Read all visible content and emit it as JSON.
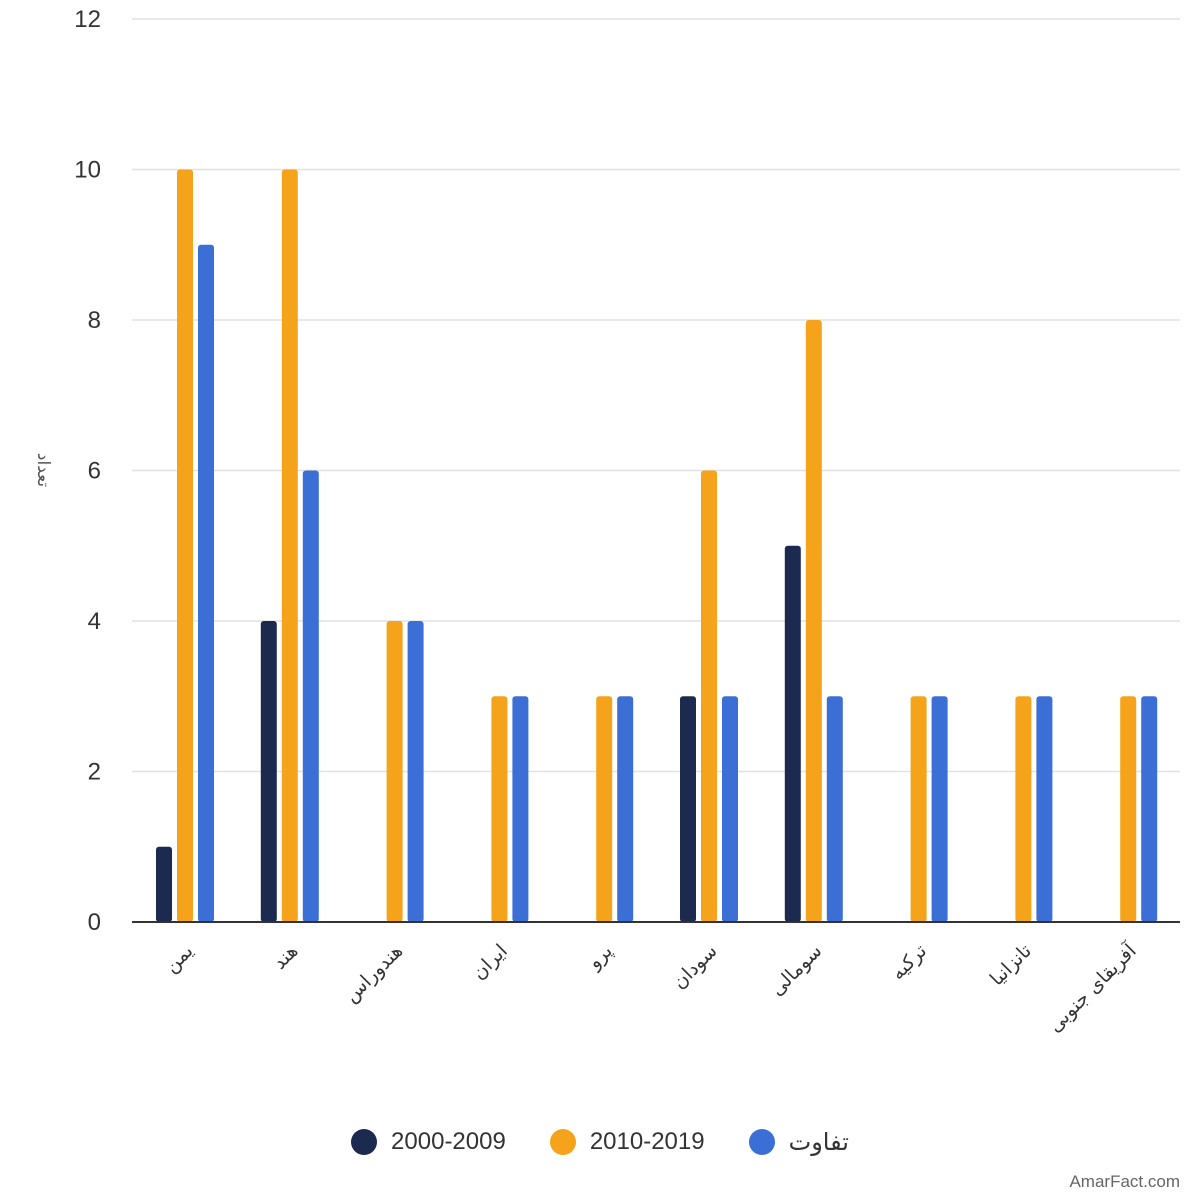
{
  "chart_data": {
    "type": "bar",
    "ylabel": "تعداد",
    "xlabel": "",
    "ylim": [
      0,
      12
    ],
    "yticks": [
      0,
      2,
      4,
      6,
      8,
      10,
      12
    ],
    "grid": true,
    "legend_position": "bottom",
    "categories": [
      "یمن",
      "هند",
      "هندوراس",
      "ایران",
      "پرو",
      "سودان",
      "سومالی",
      "ترکیه",
      "تانزانیا",
      "آفریقای جنوبی"
    ],
    "series": [
      {
        "name": "2000-2009",
        "color": "#1b2a4e",
        "values": [
          1,
          4,
          0,
          0,
          0,
          3,
          5,
          0,
          0,
          0
        ]
      },
      {
        "name": "2010-2019",
        "color": "#f5a31a",
        "values": [
          10,
          10,
          4,
          3,
          3,
          6,
          8,
          3,
          3,
          3
        ]
      },
      {
        "name": "تفاوت",
        "color": "#3b6fd6",
        "values": [
          9,
          6,
          4,
          3,
          3,
          3,
          3,
          3,
          3,
          3
        ]
      }
    ]
  },
  "watermark": "AmarFact.com"
}
